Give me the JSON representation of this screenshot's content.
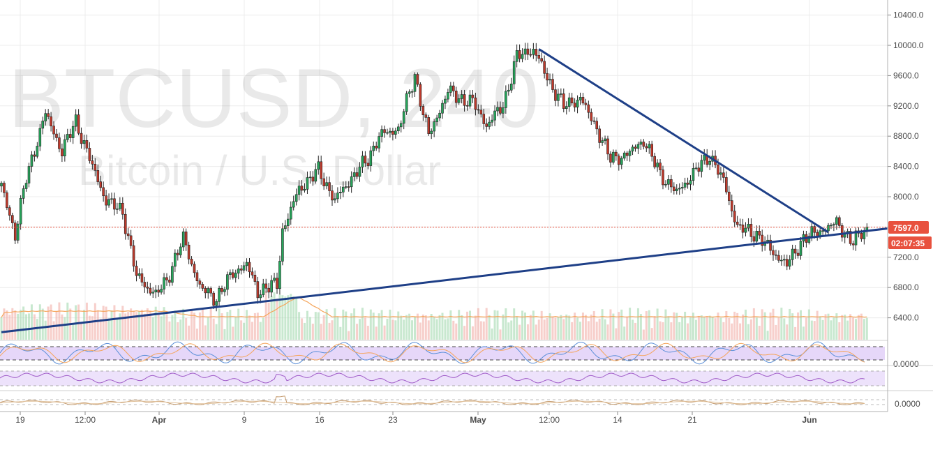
{
  "watermark": {
    "symbol": "BTCUSD, 240",
    "description": "Bitcoin / U.S. Dollar"
  },
  "price_badge": {
    "value": "7597.0",
    "countdown": "02:07:35",
    "color": "#e8513e"
  },
  "oscillator_labels": {
    "osc1": "0.0000",
    "osc3": "0.0000"
  },
  "colors": {
    "up": "#26a65b",
    "down": "#c0392b",
    "trendline": "#1e3f87",
    "volume_ma": "#f5a55b",
    "osc_band": "#dcc6f7"
  },
  "chart_data": {
    "type": "candlestick",
    "symbol": "BTCUSD",
    "interval": "240",
    "y_ticks": [
      "10400.0",
      "10000.0",
      "9600.0",
      "9200.0",
      "8800.0",
      "8400.0",
      "8000.0",
      "7600.0",
      "7200.0",
      "6800.0",
      "6400.0"
    ],
    "ylim": [
      6200,
      10500
    ],
    "last_price": 7597.0,
    "x_tick_labels": [
      {
        "label": "19",
        "bold": false
      },
      {
        "label": "12:00",
        "bold": false
      },
      {
        "label": "Apr",
        "bold": true
      },
      {
        "label": "9",
        "bold": false
      },
      {
        "label": "16",
        "bold": false
      },
      {
        "label": "23",
        "bold": false
      },
      {
        "label": "May",
        "bold": true
      },
      {
        "label": "12:00",
        "bold": false
      },
      {
        "label": "14",
        "bold": false
      },
      {
        "label": "21",
        "bold": false
      },
      {
        "label": "Jun",
        "bold": true
      }
    ],
    "price_path": [
      {
        "i": 0,
        "p": 8150
      },
      {
        "i": 5,
        "p": 7500
      },
      {
        "i": 9,
        "p": 8250
      },
      {
        "i": 16,
        "p": 9100
      },
      {
        "i": 22,
        "p": 8600
      },
      {
        "i": 27,
        "p": 9000
      },
      {
        "i": 33,
        "p": 8400
      },
      {
        "i": 38,
        "p": 7950
      },
      {
        "i": 44,
        "p": 7800
      },
      {
        "i": 49,
        "p": 6950
      },
      {
        "i": 56,
        "p": 6700
      },
      {
        "i": 60,
        "p": 6900
      },
      {
        "i": 66,
        "p": 7450
      },
      {
        "i": 72,
        "p": 6800
      },
      {
        "i": 78,
        "p": 6650
      },
      {
        "i": 84,
        "p": 7000
      },
      {
        "i": 89,
        "p": 7100
      },
      {
        "i": 93,
        "p": 6750
      },
      {
        "i": 100,
        "p": 6850
      },
      {
        "i": 102,
        "p": 7550
      },
      {
        "i": 108,
        "p": 8100
      },
      {
        "i": 115,
        "p": 8350
      },
      {
        "i": 121,
        "p": 7950
      },
      {
        "i": 127,
        "p": 8250
      },
      {
        "i": 133,
        "p": 8500
      },
      {
        "i": 137,
        "p": 8800
      },
      {
        "i": 144,
        "p": 8900
      },
      {
        "i": 150,
        "p": 9600
      },
      {
        "i": 155,
        "p": 8800
      },
      {
        "i": 162,
        "p": 9400
      },
      {
        "i": 166,
        "p": 9300
      },
      {
        "i": 171,
        "p": 9250
      },
      {
        "i": 176,
        "p": 8950
      },
      {
        "i": 182,
        "p": 9200
      },
      {
        "i": 187,
        "p": 9850
      },
      {
        "i": 193,
        "p": 9950
      },
      {
        "i": 199,
        "p": 9500
      },
      {
        "i": 204,
        "p": 9200
      },
      {
        "i": 210,
        "p": 9300
      },
      {
        "i": 216,
        "p": 8900
      },
      {
        "i": 221,
        "p": 8500
      },
      {
        "i": 227,
        "p": 8550
      },
      {
        "i": 233,
        "p": 8750
      },
      {
        "i": 239,
        "p": 8300
      },
      {
        "i": 245,
        "p": 8050
      },
      {
        "i": 252,
        "p": 8350
      },
      {
        "i": 257,
        "p": 8550
      },
      {
        "i": 262,
        "p": 8200
      },
      {
        "i": 267,
        "p": 7600
      },
      {
        "i": 274,
        "p": 7500
      },
      {
        "i": 279,
        "p": 7300
      },
      {
        "i": 285,
        "p": 7100
      },
      {
        "i": 291,
        "p": 7450
      },
      {
        "i": 297,
        "p": 7550
      },
      {
        "i": 303,
        "p": 7650
      },
      {
        "i": 309,
        "p": 7400
      },
      {
        "i": 314,
        "p": 7590
      }
    ],
    "trendlines": [
      {
        "from": {
          "i": 0,
          "p": 6210
        },
        "to": {
          "i": 322,
          "p": 7580
        }
      },
      {
        "from": {
          "i": 195,
          "p": 9950
        },
        "to": {
          "i": 300,
          "p": 7530
        }
      }
    ]
  }
}
